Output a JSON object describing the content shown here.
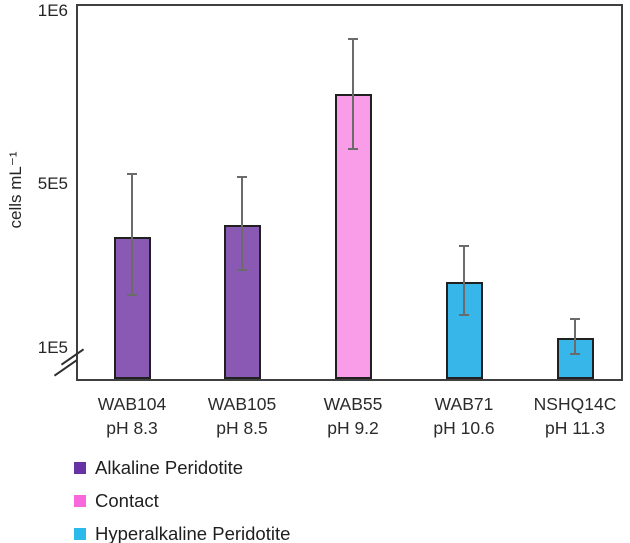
{
  "figure": {
    "y_axis_label": "cells mL⁻¹"
  },
  "chart_data": {
    "type": "bar",
    "title": "",
    "xlabel": "",
    "ylabel": "cells mL⁻¹",
    "grid": false,
    "y_axis_break": true,
    "legend_position": "bottom-left",
    "ylim_displayed": [
      100000,
      1000000
    ],
    "y_ticks": [
      {
        "label": "1E6",
        "value": 1000000
      },
      {
        "label": "5E5",
        "value": 500000
      },
      {
        "label": "1E5",
        "value": 100000
      }
    ],
    "categories": [
      {
        "name": "WAB104",
        "ph_label": "pH 8.3"
      },
      {
        "name": "WAB105",
        "ph_label": "pH 8.5"
      },
      {
        "name": "WAB55",
        "ph_label": "pH 9.2"
      },
      {
        "name": "WAB71",
        "ph_label": "pH 10.6"
      },
      {
        "name": "NSHQ14C",
        "ph_label": "pH 11.3"
      }
    ],
    "bars": [
      {
        "category": "WAB104",
        "series": "Alkaline Peridotite",
        "value": 370000,
        "err_low": 230000,
        "err_high": 530000
      },
      {
        "category": "WAB105",
        "series": "Alkaline Peridotite",
        "value": 400000,
        "err_low": 290000,
        "err_high": 520000
      },
      {
        "category": "WAB55",
        "series": "Contact",
        "value": 760000,
        "err_low": 600000,
        "err_high": 920000
      },
      {
        "category": "WAB71",
        "series": "Hyperalkaline Peridotite",
        "value": 260000,
        "err_low": 180000,
        "err_high": 350000
      },
      {
        "category": "NSHQ14C",
        "series": "Hyperalkaline Peridotite",
        "value": 125000,
        "err_low": 85000,
        "err_high": 170000
      }
    ],
    "series": [
      {
        "name": "Alkaline Peridotite",
        "bar_color": "#8a59b4",
        "legend_color": "#6733a4"
      },
      {
        "name": "Contact",
        "bar_color": "#f99de8",
        "legend_color": "#f868dc"
      },
      {
        "name": "Hyperalkaline Peridotite",
        "bar_color": "#36b6e9",
        "legend_color": "#2cbaed"
      }
    ]
  }
}
